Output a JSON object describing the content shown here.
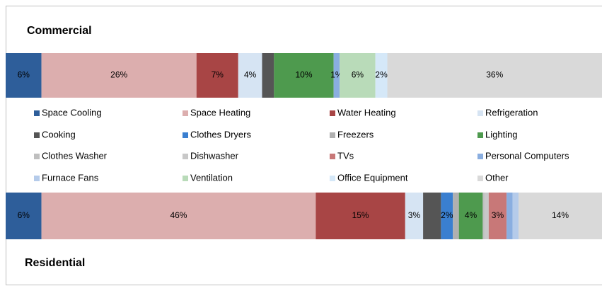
{
  "chart_data": {
    "type": "stacked-bar-horizontal",
    "categories": [
      "Commercial",
      "Residential"
    ],
    "xlim": [
      0,
      100
    ],
    "series": [
      {
        "name": "Space Cooling",
        "color": "#2e5e9a",
        "values": [
          6,
          6
        ],
        "value_labels": [
          "6%",
          "6%"
        ]
      },
      {
        "name": "Space Heating",
        "color": "#dcaeae",
        "values": [
          26,
          46
        ],
        "value_labels": [
          "26%",
          "46%"
        ]
      },
      {
        "name": "Water Heating",
        "color": "#a84545",
        "values": [
          7,
          15
        ],
        "value_labels": [
          "7%",
          "15%"
        ]
      },
      {
        "name": "Refrigeration",
        "color": "#d6e4f3",
        "values": [
          4,
          3
        ],
        "value_labels": [
          "4%",
          "3%"
        ]
      },
      {
        "name": "Cooking",
        "color": "#555555",
        "values": [
          2,
          3
        ],
        "value_labels": [
          null,
          null
        ]
      },
      {
        "name": "Clothes Dryers",
        "color": "#3a7fd0",
        "values": [
          0,
          2
        ],
        "value_labels": [
          null,
          "2%"
        ]
      },
      {
        "name": "Freezers",
        "color": "#b0b0b0",
        "values": [
          0,
          1
        ],
        "value_labels": [
          null,
          null
        ]
      },
      {
        "name": "Lighting",
        "color": "#4e9a4e",
        "values": [
          10,
          4
        ],
        "value_labels": [
          "10%",
          "4%"
        ]
      },
      {
        "name": "Clothes Washer",
        "color": "#bfbfbf",
        "values": [
          0,
          0.3
        ],
        "value_labels": [
          null,
          null
        ]
      },
      {
        "name": "Dishwasher",
        "color": "#c8c8c8",
        "values": [
          0,
          0.7
        ],
        "value_labels": [
          null,
          null
        ]
      },
      {
        "name": "TVs",
        "color": "#c87878",
        "values": [
          0,
          3
        ],
        "value_labels": [
          null,
          "3%"
        ]
      },
      {
        "name": "Personal Computers",
        "color": "#8aaee0",
        "values": [
          1,
          1
        ],
        "value_labels": [
          "1%",
          null
        ]
      },
      {
        "name": "Furnace Fans",
        "color": "#b5cbea",
        "values": [
          0,
          1
        ],
        "value_labels": [
          null,
          null
        ]
      },
      {
        "name": "Ventilation",
        "color": "#b9dbb9",
        "values": [
          6,
          0
        ],
        "value_labels": [
          "6%",
          null
        ]
      },
      {
        "name": "Office Equipment",
        "color": "#d5e8f8",
        "values": [
          2,
          0
        ],
        "value_labels": [
          "2%",
          null
        ]
      },
      {
        "name": "Other",
        "color": "#d9d9d9",
        "values": [
          36,
          14
        ],
        "value_labels": [
          "36%",
          "14%"
        ]
      }
    ]
  }
}
